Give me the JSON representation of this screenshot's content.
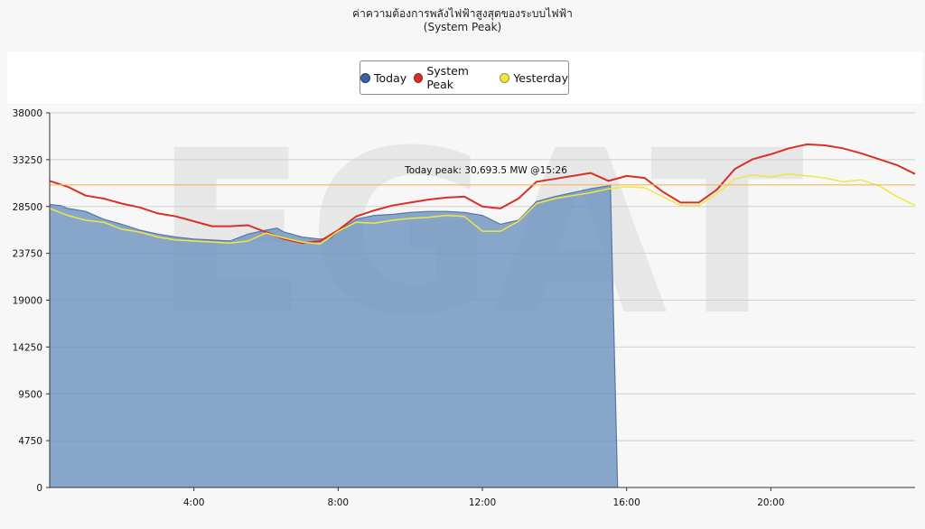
{
  "title": "ค่าความต้องการพลังไฟฟ้าสูงสุดของระบบไฟฟ้า",
  "subtitle": "(System Peak)",
  "legend": [
    {
      "label": "Today",
      "color": "#3c5fa6"
    },
    {
      "label": "System Peak",
      "color": "#d93025"
    },
    {
      "label": "Yesterday",
      "color": "#f2e640"
    }
  ],
  "annotation": "Today peak: 30,693.5 MW @15:26",
  "watermark": "EGAT",
  "chart_data": {
    "type": "area",
    "title": "ค่าความต้องการพลังไฟฟ้าสูงสุดของระบบไฟฟ้า",
    "subtitle": "(System Peak)",
    "xlabel": "",
    "ylabel": "",
    "xlim": [
      0,
      24
    ],
    "ylim": [
      0,
      38000
    ],
    "y_ticks": [
      0,
      4750,
      9500,
      14250,
      19000,
      23750,
      28500,
      33250,
      38000
    ],
    "x_ticks": [
      {
        "value": 4,
        "label": "4:00"
      },
      {
        "value": 8,
        "label": "8:00"
      },
      {
        "value": 12,
        "label": "12:00"
      },
      {
        "value": 16,
        "label": "16:00"
      },
      {
        "value": 20,
        "label": "20:00"
      }
    ],
    "grid": "horizontal",
    "legend_position": "top",
    "peak_line": {
      "value": 30693.5,
      "time": "15:26",
      "color": "#f4b85a"
    },
    "series": [
      {
        "name": "Today",
        "type": "area",
        "color": "#6f93c0",
        "x": [
          0,
          0.3,
          0.5,
          1,
          1.5,
          2,
          2.5,
          3,
          3.5,
          4,
          4.5,
          5,
          5.5,
          6,
          6.3,
          6.5,
          7,
          7.5,
          7.8,
          8,
          8.5,
          9,
          9.5,
          10,
          10.5,
          11,
          11.5,
          12,
          12.5,
          13,
          13.5,
          14,
          14.5,
          15,
          15.5,
          15.55,
          15.75
        ],
        "values": [
          28700,
          28600,
          28300,
          28000,
          27200,
          26700,
          26100,
          25700,
          25400,
          25200,
          25100,
          25000,
          25700,
          26100,
          26300,
          25900,
          25400,
          25200,
          25300,
          26000,
          27200,
          27600,
          27700,
          27900,
          28000,
          28000,
          27900,
          27600,
          26700,
          27100,
          29000,
          29500,
          29900,
          30300,
          30600,
          30693.5,
          0
        ]
      },
      {
        "name": "System Peak",
        "type": "line",
        "color": "#d93025",
        "x": [
          0,
          0.5,
          1,
          1.5,
          2,
          2.5,
          3,
          3.5,
          4,
          4.5,
          5,
          5.5,
          6,
          6.5,
          7,
          7.5,
          8,
          8.5,
          9,
          9.5,
          10,
          10.5,
          11,
          11.5,
          12,
          12.5,
          13,
          13.5,
          14,
          14.5,
          15,
          15.5,
          16,
          16.5,
          17,
          17.5,
          18,
          18.5,
          19,
          19.5,
          20,
          20.5,
          21,
          21.5,
          22,
          22.5,
          23,
          23.5,
          24
        ],
        "values": [
          31100,
          30500,
          29600,
          29300,
          28800,
          28400,
          27800,
          27500,
          27000,
          26500,
          26500,
          26600,
          25900,
          25200,
          24800,
          25000,
          26100,
          27500,
          28100,
          28600,
          28900,
          29200,
          29400,
          29500,
          28500,
          28300,
          29300,
          31000,
          31300,
          31600,
          31900,
          31100,
          31600,
          31400,
          30000,
          28900,
          28900,
          30200,
          32300,
          33300,
          33800,
          34400,
          34800,
          34700,
          34400,
          33900,
          33300,
          32700,
          31800
        ]
      },
      {
        "name": "Yesterday",
        "type": "line",
        "color": "#f2e640",
        "x": [
          0,
          0.5,
          1,
          1.5,
          2,
          2.5,
          3,
          3.5,
          4,
          4.5,
          5,
          5.5,
          6,
          6.5,
          7,
          7.5,
          8,
          8.5,
          9,
          9.5,
          10,
          10.5,
          11,
          11.5,
          12,
          12.5,
          13,
          13.5,
          14,
          14.5,
          15,
          15.5,
          16,
          16.5,
          17,
          17.5,
          18,
          18.5,
          19,
          19.5,
          20,
          20.5,
          21,
          21.5,
          22,
          22.5,
          23,
          23.5,
          24
        ],
        "values": [
          28300,
          27600,
          27100,
          26900,
          26200,
          25900,
          25400,
          25100,
          25000,
          24900,
          24800,
          25000,
          25800,
          25300,
          24900,
          24700,
          26000,
          26900,
          26800,
          27100,
          27300,
          27400,
          27600,
          27500,
          26000,
          26000,
          27000,
          28800,
          29300,
          29600,
          29900,
          30300,
          30500,
          30400,
          29500,
          28600,
          28600,
          29800,
          31300,
          31700,
          31500,
          31800,
          31600,
          31400,
          31000,
          31200,
          30600,
          29500,
          28600
        ]
      }
    ]
  }
}
